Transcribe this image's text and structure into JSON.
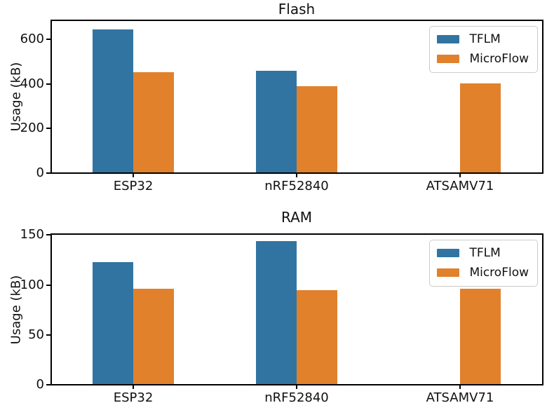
{
  "figure": {
    "background": "#ffffff",
    "text_color": "#111111",
    "spine_color": "#000000"
  },
  "chart_data": [
    {
      "type": "bar",
      "title": "Flash",
      "xlabel": "",
      "ylabel": "Usage (kB)",
      "categories": [
        "ESP32",
        "nRF52840",
        "ATSAMV71"
      ],
      "series": [
        {
          "name": "TFLM",
          "color": "#3274a1",
          "values": [
            645,
            460,
            null
          ]
        },
        {
          "name": "MicroFlow",
          "color": "#e1812c",
          "values": [
            454,
            390,
            403
          ]
        }
      ],
      "ylim": [
        0,
        685
      ],
      "yticks": [
        0,
        200,
        400,
        600
      ],
      "grid": false,
      "legend_position": "upper right"
    },
    {
      "type": "bar",
      "title": "RAM",
      "xlabel": "",
      "ylabel": "Usage (kB)",
      "categories": [
        "ESP32",
        "nRF52840",
        "ATSAMV71"
      ],
      "series": [
        {
          "name": "TFLM",
          "color": "#3274a1",
          "values": [
            123,
            144,
            null
          ]
        },
        {
          "name": "MicroFlow",
          "color": "#e1812c",
          "values": [
            96,
            95,
            96
          ]
        }
      ],
      "ylim": [
        0,
        151
      ],
      "yticks": [
        0,
        50,
        100,
        150
      ],
      "grid": false,
      "legend_position": "upper right"
    }
  ]
}
